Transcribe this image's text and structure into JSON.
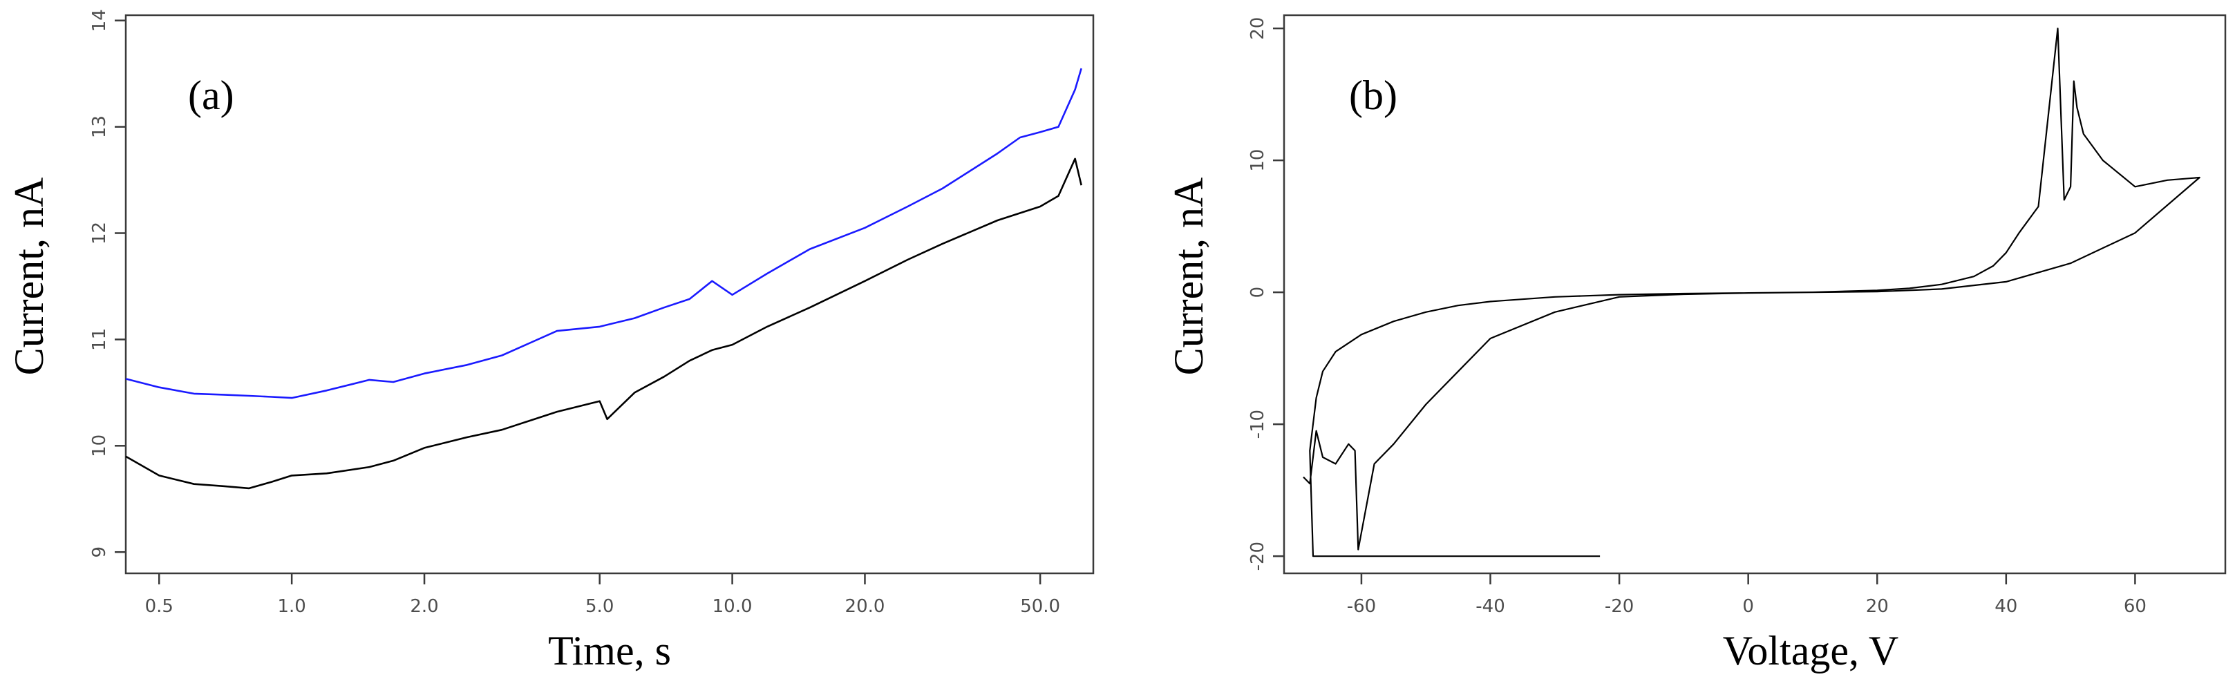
{
  "chart_data": [
    {
      "type": "line",
      "panel_label": "(a)",
      "xlabel": "Time, s",
      "ylabel": "Current, nA",
      "x_scale": "log",
      "xlim": [
        0.42,
        66
      ],
      "ylim": [
        8.8,
        14.05
      ],
      "x_ticks": [
        0.5,
        1.0,
        2.0,
        5.0,
        10.0,
        20.0,
        50.0
      ],
      "x_tick_labels": [
        "0.5",
        "1.0",
        "2.0",
        "5.0",
        "10.0",
        "20.0",
        "50.0"
      ],
      "y_ticks": [
        9,
        10,
        11,
        12,
        13,
        14
      ],
      "y_tick_labels": [
        "9",
        "10",
        "11",
        "12",
        "13",
        "14"
      ],
      "series": [
        {
          "name": "upper trace",
          "color": "#1a1aff",
          "x": [
            0.42,
            0.5,
            0.6,
            0.7,
            0.8,
            0.9,
            1.0,
            1.2,
            1.5,
            1.7,
            2.0,
            2.5,
            3.0,
            4.0,
            5.0,
            6.0,
            7.0,
            8.0,
            9.0,
            10.0,
            12.0,
            15.0,
            20.0,
            25.0,
            30.0,
            40.0,
            45.0,
            50.0,
            55.0,
            60.0,
            62.0
          ],
          "y": [
            10.63,
            10.55,
            10.49,
            10.48,
            10.47,
            10.46,
            10.45,
            10.52,
            10.62,
            10.6,
            10.68,
            10.76,
            10.85,
            11.08,
            11.12,
            11.2,
            11.3,
            11.38,
            11.55,
            11.42,
            11.62,
            11.85,
            12.05,
            12.25,
            12.42,
            12.75,
            12.9,
            12.95,
            13.0,
            13.35,
            13.55
          ]
        },
        {
          "name": "lower trace",
          "color": "#000000",
          "x": [
            0.42,
            0.5,
            0.6,
            0.7,
            0.8,
            0.9,
            1.0,
            1.2,
            1.5,
            1.7,
            2.0,
            2.5,
            3.0,
            4.0,
            5.0,
            5.2,
            6.0,
            7.0,
            8.0,
            9.0,
            10.0,
            12.0,
            15.0,
            20.0,
            25.0,
            30.0,
            40.0,
            50.0,
            55.0,
            60.0,
            62.0
          ],
          "y": [
            9.9,
            9.72,
            9.64,
            9.62,
            9.6,
            9.66,
            9.72,
            9.74,
            9.8,
            9.86,
            9.98,
            10.08,
            10.15,
            10.32,
            10.42,
            10.25,
            10.5,
            10.65,
            10.8,
            10.9,
            10.95,
            11.12,
            11.3,
            11.55,
            11.75,
            11.9,
            12.12,
            12.25,
            12.35,
            12.7,
            12.45
          ]
        }
      ]
    },
    {
      "type": "line",
      "panel_label": "(b)",
      "xlabel": "Voltage, V",
      "ylabel": "Current, nA",
      "x_scale": "linear",
      "xlim": [
        -72,
        74
      ],
      "ylim": [
        -21.3,
        21
      ],
      "x_ticks": [
        -60,
        -40,
        -20,
        0,
        20,
        40,
        60
      ],
      "x_tick_labels": [
        "-60",
        "-40",
        "-20",
        "0",
        "20",
        "40",
        "60"
      ],
      "y_ticks": [
        -20,
        -10,
        0,
        10,
        20
      ],
      "y_tick_labels": [
        "-20",
        "-10",
        "0",
        "10",
        "20"
      ],
      "series": [
        {
          "name": "I-V loop",
          "color": "#000000",
          "x": [
            -23,
            -67.5,
            -68,
            -67,
            -66,
            -64,
            -60,
            -55,
            -50,
            -45,
            -40,
            -30,
            -20,
            -10,
            0,
            10,
            20,
            30,
            40,
            50,
            60,
            70,
            65,
            60,
            55,
            52,
            51,
            50.5,
            50,
            49,
            48,
            45,
            42,
            40,
            38,
            35,
            30,
            25,
            20,
            10,
            0,
            -10,
            -20,
            -30,
            -40,
            -45,
            -50,
            -55,
            -58,
            -60.5,
            -61,
            -62,
            -64,
            -66,
            -67,
            -68,
            -69
          ],
          "y": [
            -20,
            -20,
            -12,
            -8,
            -6,
            -4.5,
            -3.2,
            -2.2,
            -1.5,
            -1,
            -0.7,
            -0.35,
            -0.18,
            -0.1,
            -0.05,
            0,
            0.05,
            0.25,
            0.8,
            2.2,
            4.5,
            8.7,
            8.5,
            8,
            10,
            12,
            14,
            16,
            8,
            7,
            20,
            6.5,
            4.5,
            3,
            2,
            1.2,
            0.6,
            0.3,
            0.15,
            0,
            -0.05,
            -0.15,
            -0.35,
            -1.5,
            -3.5,
            -6,
            -8.5,
            -11.5,
            -13,
            -19.5,
            -12,
            -11.5,
            -13,
            -12.5,
            -10.5,
            -14.5,
            -14
          ]
        }
      ]
    }
  ]
}
